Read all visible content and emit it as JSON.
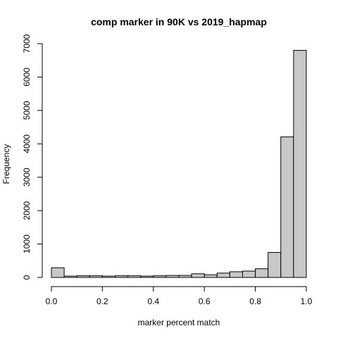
{
  "chart_data": {
    "type": "bar",
    "title": "comp marker in 90K vs 2019_hapmap",
    "xlabel": "marker percent match",
    "ylabel": "Frequency",
    "xlim": [
      0.0,
      1.0
    ],
    "ylim": [
      0,
      7000
    ],
    "x_ticks": [
      "0.0",
      "0.2",
      "0.4",
      "0.6",
      "0.8",
      "1.0"
    ],
    "y_ticks": [
      "0",
      "1000",
      "2000",
      "3000",
      "4000",
      "5000",
      "6000",
      "7000"
    ],
    "bin_width": 0.05,
    "bins": [
      {
        "start": 0.0,
        "end": 0.05,
        "count": 290
      },
      {
        "start": 0.05,
        "end": 0.1,
        "count": 40
      },
      {
        "start": 0.1,
        "end": 0.15,
        "count": 50
      },
      {
        "start": 0.15,
        "end": 0.2,
        "count": 50
      },
      {
        "start": 0.2,
        "end": 0.25,
        "count": 40
      },
      {
        "start": 0.25,
        "end": 0.3,
        "count": 50
      },
      {
        "start": 0.3,
        "end": 0.35,
        "count": 50
      },
      {
        "start": 0.35,
        "end": 0.4,
        "count": 40
      },
      {
        "start": 0.4,
        "end": 0.45,
        "count": 50
      },
      {
        "start": 0.45,
        "end": 0.5,
        "count": 60
      },
      {
        "start": 0.5,
        "end": 0.55,
        "count": 60
      },
      {
        "start": 0.55,
        "end": 0.6,
        "count": 110
      },
      {
        "start": 0.6,
        "end": 0.65,
        "count": 80
      },
      {
        "start": 0.65,
        "end": 0.7,
        "count": 130
      },
      {
        "start": 0.7,
        "end": 0.75,
        "count": 170
      },
      {
        "start": 0.75,
        "end": 0.8,
        "count": 190
      },
      {
        "start": 0.8,
        "end": 0.85,
        "count": 260
      },
      {
        "start": 0.85,
        "end": 0.9,
        "count": 750
      },
      {
        "start": 0.9,
        "end": 0.95,
        "count": 4210
      },
      {
        "start": 0.95,
        "end": 1.0,
        "count": 6800
      }
    ],
    "grid": false,
    "colors": {
      "bar_fill": "#c8c8c8",
      "bar_stroke": "#000000"
    }
  }
}
